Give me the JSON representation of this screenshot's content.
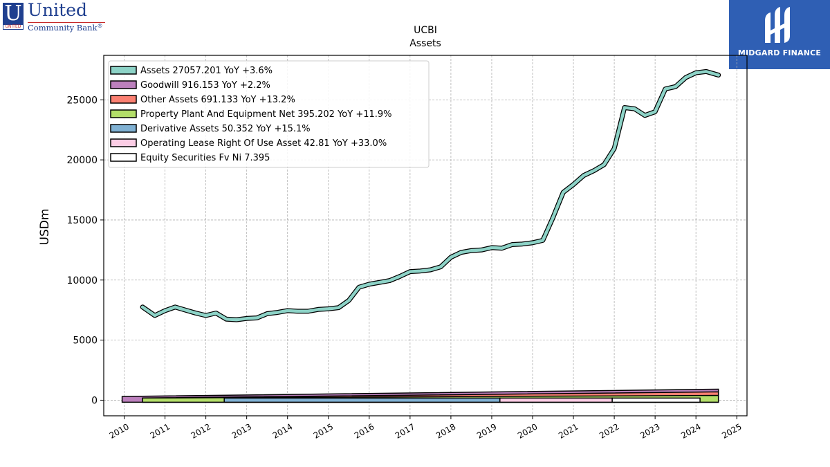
{
  "logos": {
    "left": {
      "letter": "U",
      "mark_text": "UNITED",
      "name": "United",
      "subtitle": "Community Bank",
      "reg": "®"
    },
    "right": {
      "name": "MIDGARD FINANCE"
    }
  },
  "chart_data": {
    "type": "area",
    "title": "UCBI",
    "subtitle": "Assets",
    "ylabel": "USDm",
    "xlim": [
      2009.5,
      2025.25
    ],
    "ylim": [
      -1300,
      28700
    ],
    "yticks": [
      0,
      5000,
      10000,
      15000,
      20000,
      25000
    ],
    "xticks": [
      "2010",
      "2011",
      "2012",
      "2013",
      "2014",
      "2015",
      "2016",
      "2017",
      "2018",
      "2019",
      "2020",
      "2021",
      "2022",
      "2023",
      "2024",
      "2025"
    ],
    "grid": true,
    "legend_position": "upper-left",
    "series": [
      {
        "name": "Assets",
        "legend_label": "Assets  27057.201 YoY +3.6%",
        "color": "#8dd3c7",
        "x": [
          2010.45,
          2010.75,
          2011.0,
          2011.25,
          2011.5,
          2011.75,
          2012.0,
          2012.25,
          2012.5,
          2012.75,
          2013.0,
          2013.25,
          2013.5,
          2013.75,
          2014.0,
          2014.25,
          2014.5,
          2014.75,
          2015.0,
          2015.25,
          2015.5,
          2015.75,
          2016.0,
          2016.25,
          2016.5,
          2016.75,
          2017.0,
          2017.25,
          2017.5,
          2017.75,
          2018.0,
          2018.25,
          2018.5,
          2018.75,
          2019.0,
          2019.25,
          2019.5,
          2019.75,
          2020.0,
          2020.25,
          2020.5,
          2020.75,
          2021.0,
          2021.25,
          2021.5,
          2021.75,
          2022.0,
          2022.25,
          2022.5,
          2022.75,
          2023.0,
          2023.25,
          2023.5,
          2023.75,
          2024.0,
          2024.25,
          2024.55
        ],
        "values": [
          7750,
          7050,
          7450,
          7750,
          7500,
          7250,
          7050,
          7250,
          6750,
          6700,
          6800,
          6850,
          7200,
          7300,
          7450,
          7400,
          7400,
          7550,
          7600,
          7700,
          8300,
          9400,
          9650,
          9800,
          9950,
          10300,
          10700,
          10750,
          10850,
          11100,
          11900,
          12300,
          12450,
          12500,
          12700,
          12650,
          12950,
          13000,
          13100,
          13300,
          15200,
          17300,
          17950,
          18700,
          19100,
          19600,
          20950,
          24350,
          24250,
          23700,
          24000,
          25900,
          26100,
          26850,
          27250,
          27350,
          27057
        ]
      },
      {
        "name": "Goodwill",
        "legend_label": "Goodwill  916.153 YoY +2.2%",
        "color": "#bc80bd",
        "x": [
          2009.95,
          2024.55
        ],
        "values": [
          305,
          916
        ]
      },
      {
        "name": "Other Assets",
        "legend_label": "Other Assets  691.133 YoY +13.2%",
        "color": "#fb8072",
        "x": [
          2010.45,
          2024.55
        ],
        "values": [
          180,
          691
        ]
      },
      {
        "name": "Property Plant And Equipment Net",
        "legend_label": "Property Plant And Equipment Net  395.202 YoY +11.9%",
        "color": "#b3de69",
        "x": [
          2010.45,
          2024.55
        ],
        "values": [
          180,
          395
        ]
      },
      {
        "name": "Derivative Assets",
        "legend_label": "Derivative Assets  50.352 YoY +15.1%",
        "color": "#80b1d3",
        "x": [
          2012.45,
          2019.2
        ],
        "values": [
          50,
          50
        ]
      },
      {
        "name": "Operating Lease Right Of Use Asset",
        "legend_label": "Operating Lease Right Of Use Asset  42.81 YoY +33.0%",
        "color": "#fccde5",
        "x": [
          2019.2,
          2021.95
        ],
        "values": [
          43,
          43
        ]
      },
      {
        "name": "Equity Securities Fv Ni",
        "legend_label": "Equity Securities Fv Ni  7.395",
        "color": "#ffffff",
        "x": [
          2021.95,
          2024.1
        ],
        "values": [
          7,
          7
        ]
      }
    ]
  }
}
